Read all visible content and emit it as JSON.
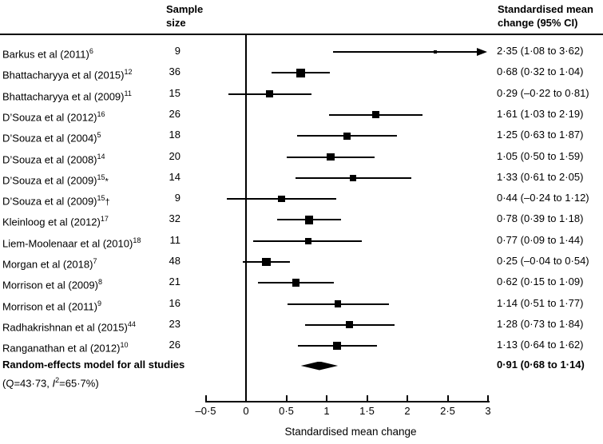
{
  "chart_data": {
    "type": "forest",
    "title": "",
    "xlabel": "Standardised mean change",
    "xlim": [
      -0.5,
      3
    ],
    "xtick_values": [
      -0.5,
      0,
      0.5,
      1,
      1.5,
      2,
      2.5,
      3
    ],
    "xtick_labels": [
      "–0·5",
      "0",
      "0·5",
      "1",
      "1·5",
      "2",
      "2·5",
      "3"
    ],
    "columns": {
      "sample_size": "Sample size",
      "effect": "Standardised mean change (95% CI)"
    },
    "studies": [
      {
        "author": "Barkus et al (2011)",
        "ref": "6",
        "suffix": "",
        "sample_size": 9,
        "estimate": 2.35,
        "ci_lower": 1.08,
        "ci_upper": 3.62,
        "display": "2·35 (1·08 to 3·62)",
        "arrow_right": true
      },
      {
        "author": "Bhattacharyya et al (2015)",
        "ref": "12",
        "suffix": "",
        "sample_size": 36,
        "estimate": 0.68,
        "ci_lower": 0.32,
        "ci_upper": 1.04,
        "display": "0·68 (0·32 to 1·04)",
        "arrow_right": false
      },
      {
        "author": "Bhattacharyya et al (2009)",
        "ref": "11",
        "suffix": "",
        "sample_size": 15,
        "estimate": 0.29,
        "ci_lower": -0.22,
        "ci_upper": 0.81,
        "display": "0·29 (–0·22 to 0·81)",
        "arrow_right": false
      },
      {
        "author": "D’Souza et al (2012)",
        "ref": "16",
        "suffix": "",
        "sample_size": 26,
        "estimate": 1.61,
        "ci_lower": 1.03,
        "ci_upper": 2.19,
        "display": "1·61 (1·03 to 2·19)",
        "arrow_right": false
      },
      {
        "author": "D’Souza et al (2004)",
        "ref": "5",
        "suffix": "",
        "sample_size": 18,
        "estimate": 1.25,
        "ci_lower": 0.63,
        "ci_upper": 1.87,
        "display": "1·25 (0·63 to 1·87)",
        "arrow_right": false
      },
      {
        "author": "D’Souza et al (2008)",
        "ref": "14",
        "suffix": "",
        "sample_size": 20,
        "estimate": 1.05,
        "ci_lower": 0.5,
        "ci_upper": 1.59,
        "display": "1·05 (0·50 to 1·59)",
        "arrow_right": false
      },
      {
        "author": "D’Souza et al (2009)",
        "ref": "15",
        "suffix": "*",
        "sample_size": 14,
        "estimate": 1.33,
        "ci_lower": 0.61,
        "ci_upper": 2.05,
        "display": "1·33 (0·61 to 2·05)",
        "arrow_right": false
      },
      {
        "author": "D’Souza et al (2009)",
        "ref": "15",
        "suffix": "†",
        "sample_size": 9,
        "estimate": 0.44,
        "ci_lower": -0.24,
        "ci_upper": 1.12,
        "display": "0·44 (–0·24 to 1·12)",
        "arrow_right": false
      },
      {
        "author": "Kleinloog et al (2012)",
        "ref": "17",
        "suffix": "",
        "sample_size": 32,
        "estimate": 0.78,
        "ci_lower": 0.39,
        "ci_upper": 1.18,
        "display": "0·78 (0·39 to 1·18)",
        "arrow_right": false
      },
      {
        "author": "Liem-Moolenaar et al (2010)",
        "ref": "18",
        "suffix": "",
        "sample_size": 11,
        "estimate": 0.77,
        "ci_lower": 0.09,
        "ci_upper": 1.44,
        "display": "0·77 (0·09 to 1·44)",
        "arrow_right": false
      },
      {
        "author": "Morgan et al (2018)",
        "ref": "7",
        "suffix": "",
        "sample_size": 48,
        "estimate": 0.25,
        "ci_lower": -0.04,
        "ci_upper": 0.54,
        "display": "0·25 (–0·04 to 0·54)",
        "arrow_right": false
      },
      {
        "author": "Morrison et al (2009)",
        "ref": "8",
        "suffix": "",
        "sample_size": 21,
        "estimate": 0.62,
        "ci_lower": 0.15,
        "ci_upper": 1.09,
        "display": "0·62 (0·15 to 1·09)",
        "arrow_right": false
      },
      {
        "author": "Morrison et al (2011)",
        "ref": "9",
        "suffix": "",
        "sample_size": 16,
        "estimate": 1.14,
        "ci_lower": 0.51,
        "ci_upper": 1.77,
        "display": "1·14 (0·51 to 1·77)",
        "arrow_right": false
      },
      {
        "author": "Radhakrishnan et al (2015)",
        "ref": "44",
        "suffix": "",
        "sample_size": 23,
        "estimate": 1.28,
        "ci_lower": 0.73,
        "ci_upper": 1.84,
        "display": "1·28 (0·73 to 1·84)",
        "arrow_right": false
      },
      {
        "author": "Ranganathan et al (2012)",
        "ref": "10",
        "suffix": "",
        "sample_size": 26,
        "estimate": 1.13,
        "ci_lower": 0.64,
        "ci_upper": 1.62,
        "display": "1·13 (0·64 to 1·62)",
        "arrow_right": false
      }
    ],
    "summary": {
      "label": "Random-effects model for all studies",
      "estimate": 0.91,
      "ci_lower": 0.68,
      "ci_upper": 1.14,
      "display": "0·91 (0·68 to 1·14)"
    },
    "heterogeneity": {
      "prefix": "(Q=43·73, ",
      "stat": "I",
      "exponent": "2",
      "suffix": "=65·7%)"
    }
  }
}
